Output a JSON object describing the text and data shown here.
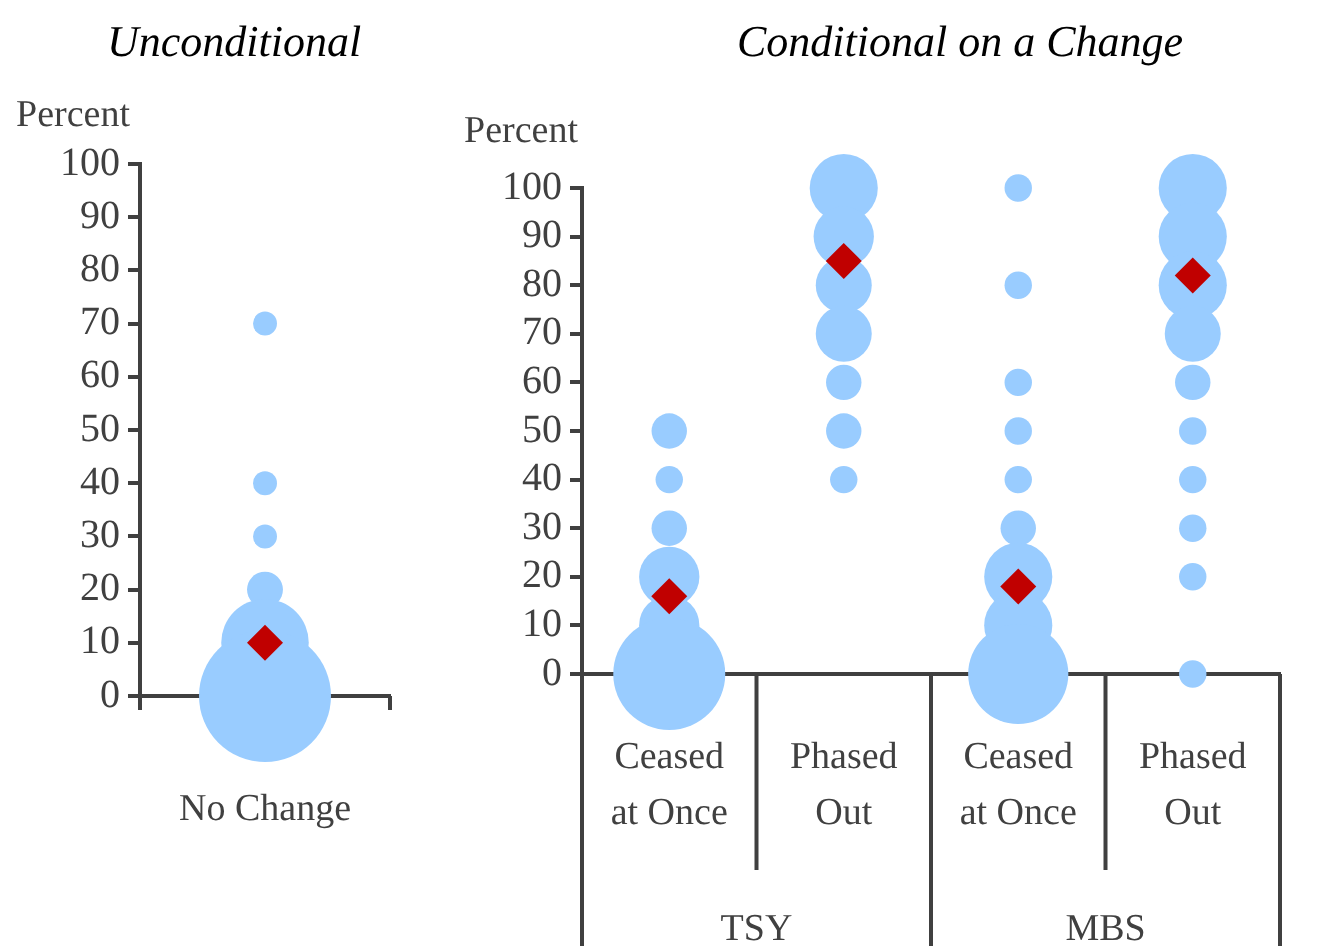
{
  "chart_data": [
    {
      "type": "bubble",
      "title": "Unconditional",
      "ylabel": "Percent",
      "categories": [
        "No Change"
      ],
      "ylim": [
        0,
        100
      ],
      "yticks": [
        0,
        10,
        20,
        30,
        40,
        50,
        60,
        70,
        80,
        90,
        100
      ],
      "grid": false,
      "legend": false,
      "series": [
        {
          "color": "#99ccff",
          "values": [
            0
          ],
          "sizes": [
            1
          ]
        },
        {
          "color": "#99ccff",
          "values": [
            10
          ],
          "sizes": [
            0.44
          ]
        },
        {
          "color": "#99ccff",
          "values": [
            20
          ],
          "sizes": [
            0.074
          ]
        },
        {
          "color": "#99ccff",
          "values": [
            30
          ],
          "sizes": [
            0.033
          ]
        },
        {
          "color": "#99ccff",
          "values": [
            40
          ],
          "sizes": [
            0.033
          ]
        },
        {
          "color": "#99ccff",
          "values": [
            70
          ],
          "sizes": [
            0.033
          ]
        },
        {
          "type": "scatter",
          "marker": "diamond",
          "color": "#c00000",
          "values": [
            10
          ]
        }
      ]
    },
    {
      "type": "bubble",
      "title": "Conditional on a Change",
      "ylabel": "Percent",
      "categories": [
        "Ceased at Once",
        "Phased Out",
        "Ceased at Once",
        "Phased Out"
      ],
      "ylim": [
        0,
        100
      ],
      "yticks": [
        0,
        10,
        20,
        30,
        40,
        50,
        60,
        70,
        80,
        90,
        100
      ],
      "grid": false,
      "legend": false,
      "annotations": [
        "TSY",
        "MBS"
      ],
      "series": [
        {
          "color": "#99ccff",
          "values": [
            0,
            null,
            0,
            0
          ],
          "sizes": [
            1,
            null,
            0.8,
            0.06
          ]
        },
        {
          "color": "#99ccff",
          "values": [
            10,
            null,
            10,
            null
          ],
          "sizes": [
            0.29,
            null,
            0.37,
            null
          ]
        },
        {
          "color": "#99ccff",
          "values": [
            20,
            null,
            20,
            20
          ],
          "sizes": [
            0.29,
            null,
            0.37,
            0.06
          ]
        },
        {
          "color": "#99ccff",
          "values": [
            30,
            null,
            30,
            30
          ],
          "sizes": [
            0.1,
            null,
            0.1,
            0.06
          ]
        },
        {
          "color": "#99ccff",
          "values": [
            40,
            40,
            40,
            40
          ],
          "sizes": [
            0.06,
            0.06,
            0.06,
            0.06
          ]
        },
        {
          "color": "#99ccff",
          "values": [
            50,
            50,
            50,
            50
          ],
          "sizes": [
            0.1,
            0.1,
            0.06,
            0.06
          ]
        },
        {
          "color": "#99ccff",
          "values": [
            null,
            60,
            60,
            60
          ],
          "sizes": [
            null,
            0.1,
            0.06,
            0.1
          ]
        },
        {
          "color": "#99ccff",
          "values": [
            null,
            70,
            null,
            70
          ],
          "sizes": [
            null,
            0.25,
            null,
            0.25
          ]
        },
        {
          "color": "#99ccff",
          "values": [
            null,
            80,
            80,
            80
          ],
          "sizes": [
            null,
            0.25,
            0.06,
            0.37
          ]
        },
        {
          "color": "#99ccff",
          "values": [
            null,
            90,
            null,
            90
          ],
          "sizes": [
            null,
            0.29,
            null,
            0.37
          ]
        },
        {
          "color": "#99ccff",
          "values": [
            null,
            100,
            100,
            100
          ],
          "sizes": [
            null,
            0.37,
            0.06,
            0.37
          ]
        },
        {
          "type": "scatter",
          "marker": "diamond",
          "color": "#c00000",
          "values": [
            16,
            85,
            18,
            82
          ]
        }
      ]
    }
  ]
}
